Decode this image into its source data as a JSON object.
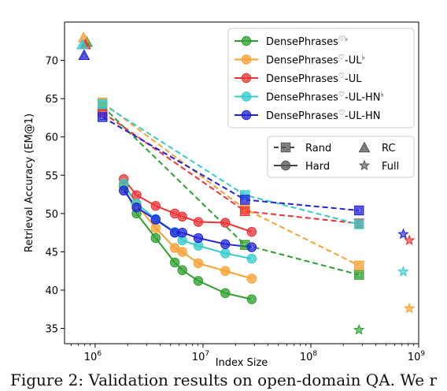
{
  "caption": "Figure 2: Validation results on open-domain QA. We r",
  "chart_data": {
    "type": "line",
    "xlabel": "Index Size",
    "ylabel": "Retrieval Accuracy (EM@1)",
    "xscale": "log",
    "xlim": [
      520000,
      1000000000
    ],
    "ylim": [
      33,
      75
    ],
    "xticks": [
      {
        "value": 1000000,
        "base": "10",
        "exp": "6"
      },
      {
        "value": 10000000,
        "base": "10",
        "exp": "7"
      },
      {
        "value": 100000000,
        "base": "10",
        "exp": "8"
      },
      {
        "value": 1000000000,
        "base": "10",
        "exp": "9"
      }
    ],
    "yticks": [
      35,
      40,
      45,
      50,
      55,
      60,
      65,
      70
    ],
    "grid": false,
    "legend_placement": "top-right",
    "series": [
      {
        "name": "DensePhrases",
        "sup": "♡♭",
        "color": "#2ca02c",
        "hard": [
          [
            1840000,
            53.6
          ],
          [
            2420000,
            50.0
          ],
          [
            3640000,
            46.8
          ],
          [
            5480000,
            43.6
          ],
          [
            6430000,
            42.6
          ],
          [
            9050000,
            41.2
          ],
          [
            16100000,
            39.6
          ],
          [
            28300000,
            38.8
          ]
        ],
        "rand": [
          [
            1170000,
            64.0
          ],
          [
            24500000,
            45.9
          ],
          [
            280000000,
            42.0
          ]
        ],
        "rc": [
          [
            840000,
            72.3
          ]
        ],
        "full": [
          [
            280000000,
            34.8
          ]
        ]
      },
      {
        "name": "DensePhrases",
        "sup": "♡-UL♭",
        "color": "#ff9f2e",
        "hard": [
          [
            1840000,
            53.9
          ],
          [
            2420000,
            51.2
          ],
          [
            3640000,
            48.1
          ],
          [
            5480000,
            45.5
          ],
          [
            6430000,
            45.0
          ],
          [
            9050000,
            43.5
          ],
          [
            16100000,
            42.5
          ],
          [
            28300000,
            41.5
          ]
        ],
        "rand": [
          [
            1170000,
            64.5
          ],
          [
            24500000,
            50.6
          ],
          [
            280000000,
            43.2
          ]
        ],
        "rc": [
          [
            780000,
            72.9
          ]
        ],
        "full": [
          [
            820000000,
            37.6
          ]
        ]
      },
      {
        "name": "DensePhrases",
        "sup": "♡-UL",
        "color": "#ee3333",
        "hard": [
          [
            1840000,
            54.5
          ],
          [
            2420000,
            52.4
          ],
          [
            3640000,
            51.0
          ],
          [
            5480000,
            50.0
          ],
          [
            6430000,
            49.6
          ],
          [
            9050000,
            48.9
          ],
          [
            16100000,
            48.8
          ],
          [
            28300000,
            47.6
          ]
        ],
        "rand": [
          [
            1170000,
            63.2
          ],
          [
            24500000,
            50.3
          ],
          [
            280000000,
            48.7
          ]
        ],
        "rc": [
          [
            810000,
            72.0
          ]
        ],
        "full": [
          [
            820000000,
            46.5
          ]
        ]
      },
      {
        "name": "DensePhrases",
        "sup": "♡-UL-HN♭",
        "color": "#33cccc",
        "hard": [
          [
            1840000,
            53.9
          ],
          [
            2420000,
            51.3
          ],
          [
            3640000,
            49.3
          ],
          [
            5480000,
            47.6
          ],
          [
            6430000,
            46.5
          ],
          [
            9050000,
            45.8
          ],
          [
            16100000,
            44.8
          ],
          [
            28300000,
            44.1
          ]
        ],
        "rand": [
          [
            1170000,
            64.3
          ],
          [
            24500000,
            52.4
          ],
          [
            280000000,
            48.6
          ]
        ],
        "rc": [
          [
            760000,
            72.0
          ]
        ],
        "full": [
          [
            720000000,
            42.4
          ]
        ]
      },
      {
        "name": "DensePhrases",
        "sup": "♡-UL-HN",
        "color": "#2222dd",
        "hard": [
          [
            1840000,
            53.0
          ],
          [
            2420000,
            50.8
          ],
          [
            3640000,
            49.2
          ],
          [
            5480000,
            47.5
          ],
          [
            6430000,
            47.5
          ],
          [
            9050000,
            46.8
          ],
          [
            16100000,
            46.0
          ],
          [
            28300000,
            45.6
          ]
        ],
        "rand": [
          [
            1170000,
            62.6
          ],
          [
            24500000,
            51.8
          ],
          [
            280000000,
            50.4
          ]
        ],
        "rc": [
          [
            790000,
            70.6
          ]
        ],
        "full": [
          [
            720000000,
            47.3
          ]
        ]
      }
    ],
    "style_legend": {
      "rand_label": "Rand",
      "hard_label": "Hard",
      "rc_label": "RC",
      "full_label": "Full"
    }
  }
}
